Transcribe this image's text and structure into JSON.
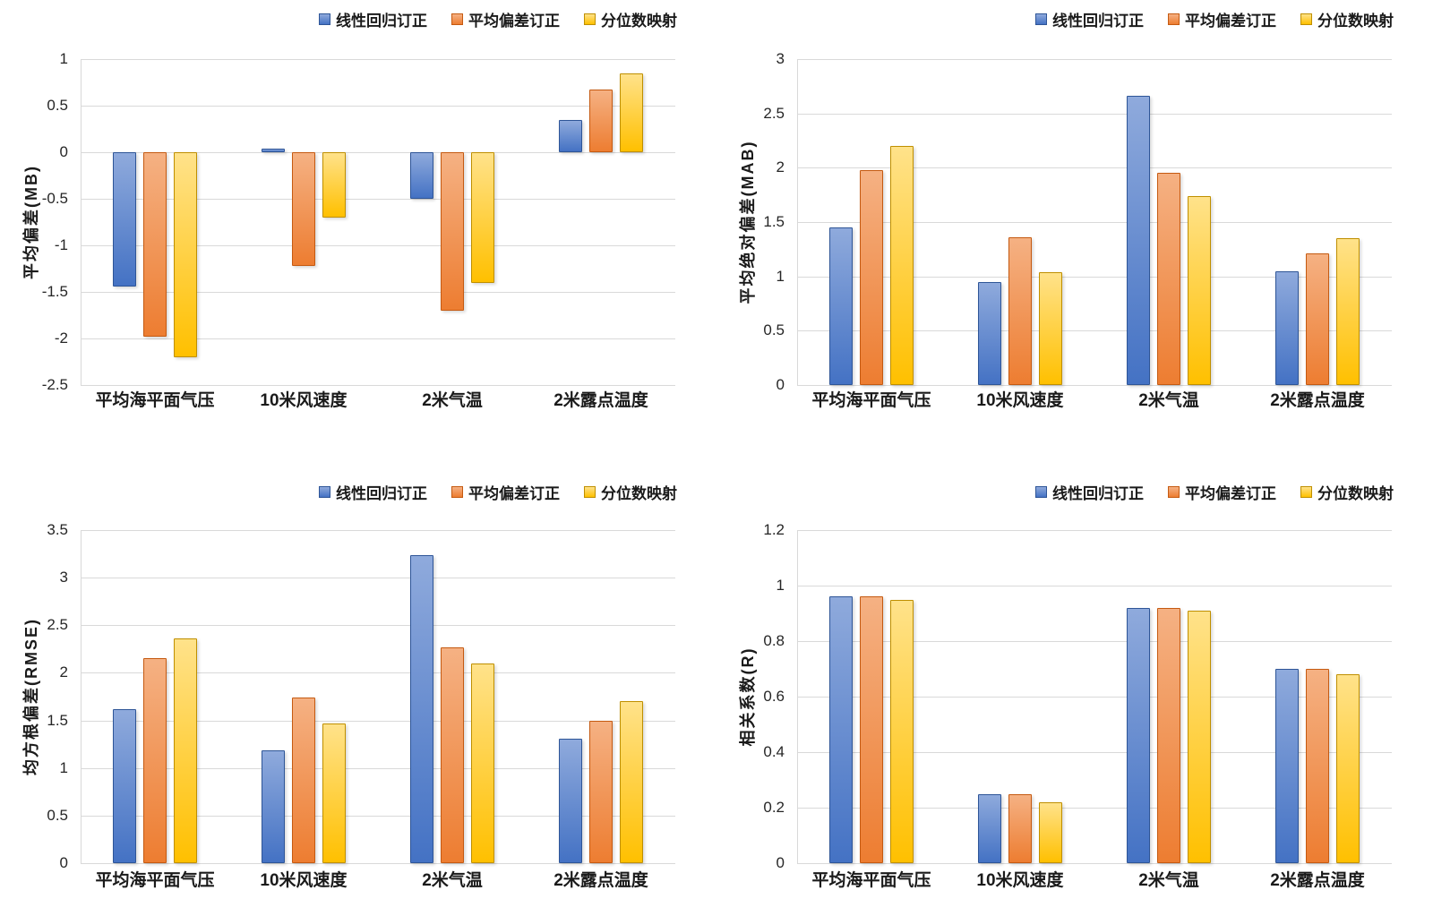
{
  "legend": [
    "线性回归订正",
    "平均偏差订正",
    "分位数映射"
  ],
  "colors": {
    "series": [
      {
        "name": "线性回归订正",
        "fill_top": "#8FAADC",
        "fill_bottom": "#4472C4",
        "border": "#2E5597"
      },
      {
        "name": "平均偏差订正",
        "fill_top": "#F5B183",
        "fill_bottom": "#ED7D31",
        "border": "#C55A11"
      },
      {
        "name": "分位数映射",
        "fill_top": "#FFE28A",
        "fill_bottom": "#FFC000",
        "border": "#BF8F00"
      }
    ],
    "gridline": "#D9D9D9",
    "text": "#1A1A1A"
  },
  "chart_data": [
    {
      "type": "bar",
      "ylabel": "平均偏差(MB)",
      "xlabel": "",
      "ylim": [
        -2.5,
        1
      ],
      "ystep": 0.5,
      "grid": true,
      "legend_position": "top-right",
      "categories": [
        "平均海平面气压",
        "10米风速度",
        "2米气温",
        "2米露点温度"
      ],
      "series": [
        {
          "name": "线性回归订正",
          "values": [
            -1.44,
            0.04,
            -0.5,
            0.35
          ]
        },
        {
          "name": "平均偏差订正",
          "values": [
            -1.98,
            -1.22,
            -1.7,
            0.67
          ]
        },
        {
          "name": "分位数映射",
          "values": [
            -2.2,
            -0.7,
            -1.4,
            0.85
          ]
        }
      ]
    },
    {
      "type": "bar",
      "ylabel": "平均绝对偏差(MAB)",
      "xlabel": "",
      "ylim": [
        0,
        3
      ],
      "ystep": 0.5,
      "grid": true,
      "legend_position": "top-right",
      "categories": [
        "平均海平面气压",
        "10米风速度",
        "2米气温",
        "2米露点温度"
      ],
      "series": [
        {
          "name": "线性回归订正",
          "values": [
            1.45,
            0.95,
            2.66,
            1.05
          ]
        },
        {
          "name": "平均偏差订正",
          "values": [
            1.98,
            1.36,
            1.95,
            1.21
          ]
        },
        {
          "name": "分位数映射",
          "values": [
            2.2,
            1.04,
            1.74,
            1.35
          ]
        }
      ]
    },
    {
      "type": "bar",
      "ylabel": "均方根偏差(RMSE)",
      "xlabel": "",
      "ylim": [
        0,
        3.5
      ],
      "ystep": 0.5,
      "grid": true,
      "legend_position": "top-right",
      "categories": [
        "平均海平面气压",
        "10米风速度",
        "2米气温",
        "2米露点温度"
      ],
      "series": [
        {
          "name": "线性回归订正",
          "values": [
            1.62,
            1.19,
            3.24,
            1.31
          ]
        },
        {
          "name": "平均偏差订正",
          "values": [
            2.15,
            1.74,
            2.27,
            1.5
          ]
        },
        {
          "name": "分位数映射",
          "values": [
            2.36,
            1.47,
            2.1,
            1.7
          ]
        }
      ]
    },
    {
      "type": "bar",
      "ylabel": "相关系数(R)",
      "xlabel": "",
      "ylim": [
        0,
        1.2
      ],
      "ystep": 0.2,
      "grid": true,
      "legend_position": "top-right",
      "categories": [
        "平均海平面气压",
        "10米风速度",
        "2米气温",
        "2米露点温度"
      ],
      "series": [
        {
          "name": "线性回归订正",
          "values": [
            0.96,
            0.25,
            0.92,
            0.7
          ]
        },
        {
          "name": "平均偏差订正",
          "values": [
            0.96,
            0.25,
            0.92,
            0.7
          ]
        },
        {
          "name": "分位数映射",
          "values": [
            0.95,
            0.22,
            0.91,
            0.68
          ]
        }
      ]
    }
  ]
}
